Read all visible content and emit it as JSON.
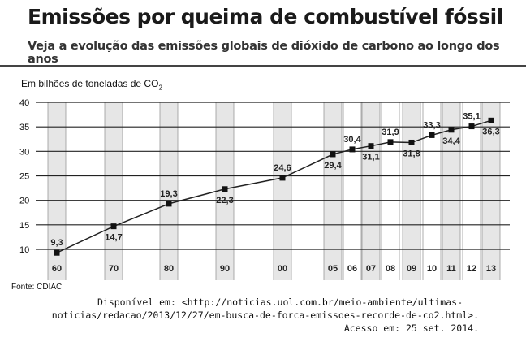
{
  "title": "Emissões por queima de combustível fóssil",
  "subtitle": "Veja a evolução das emissões globais de dióxido de carbono ao longo dos anos",
  "unit_prefix": "Em bilhões de toneladas de CO",
  "unit_sub": "2",
  "source": "Fonte: CDIAC",
  "citation": {
    "line1": "Disponível em: <http://noticias.uol.com.br/meio-ambiente/ultimas-",
    "line2": "noticias/redacao/2013/12/27/em-busca-de-forca-emissoes-recorde-de-co2.html>.",
    "line3": "Acesso em: 25 set. 2014."
  },
  "chart_data": {
    "type": "line",
    "title": "Emissões por queima de combustível fóssil",
    "ylabel": "Em bilhões de toneladas de CO2",
    "categories": [
      "60",
      "70",
      "80",
      "90",
      "00",
      "05",
      "06",
      "07",
      "08",
      "09",
      "10",
      "11",
      "12",
      "13"
    ],
    "values": [
      9.3,
      14.7,
      19.3,
      22.3,
      24.6,
      29.4,
      30.4,
      31.1,
      31.9,
      31.8,
      33.3,
      34.4,
      35.1,
      36.3
    ],
    "data_labels": [
      "9,3",
      "14,7",
      "19,3",
      "22,3",
      "24,6",
      "29,4",
      "30,4",
      "31,1",
      "31,9",
      "31,8",
      "33,3",
      "34,4",
      "35,1",
      "36,3"
    ],
    "yticks": [
      10,
      15,
      20,
      25,
      30,
      35,
      40
    ],
    "ylim": [
      7,
      40
    ],
    "grid": true,
    "colors": {
      "line": "#222222",
      "band": "#e6e6e6"
    }
  }
}
